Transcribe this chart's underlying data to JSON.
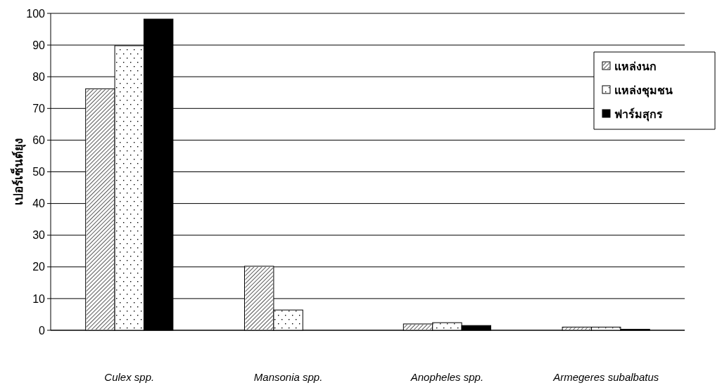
{
  "chart_data": {
    "type": "bar",
    "ylabel": "เปอร์เซ็นต์ยุง",
    "categories": [
      "Culex spp.",
      "Mansonia spp.",
      "Anopheles spp.",
      "Armegeres subalbatus"
    ],
    "series": [
      {
        "name": "แหล่งนก",
        "color": "#ffffff",
        "values": [
          76.2,
          20.2,
          2.0,
          1.0
        ]
      },
      {
        "name": "แหล่งชุมชน",
        "color": "#ffffff",
        "values": [
          89.8,
          6.4,
          2.4,
          1.0
        ]
      },
      {
        "name": "ฟาร์มสุกร",
        "color": "#000000",
        "values": [
          98.2,
          0,
          1.5,
          0.3
        ]
      }
    ],
    "ylim": [
      0,
      100
    ],
    "yticks": [
      0,
      10,
      20,
      30,
      40,
      50,
      60,
      70,
      80,
      90,
      100
    ],
    "grid": "y",
    "legend": "top right"
  }
}
